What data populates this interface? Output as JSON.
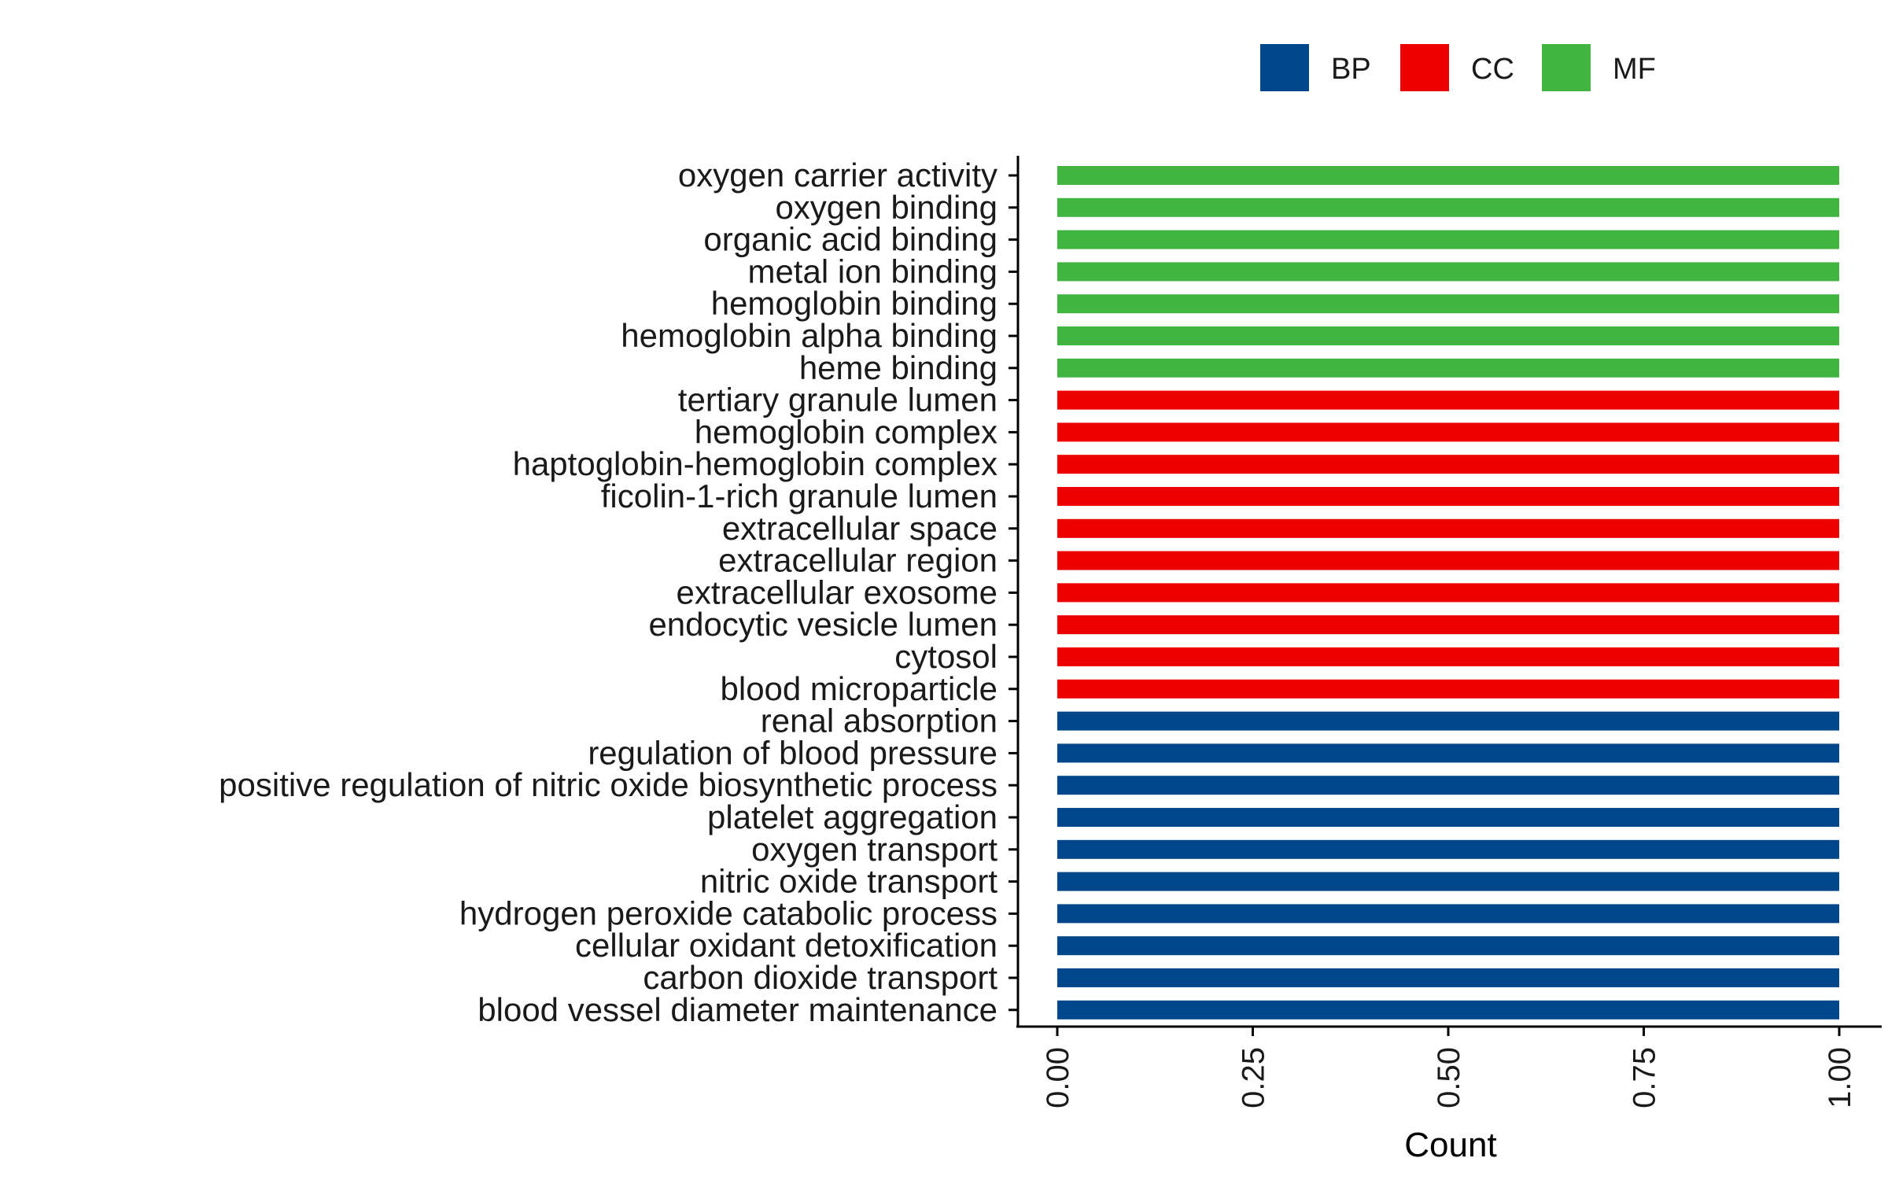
{
  "chart_data": {
    "type": "bar",
    "orientation": "horizontal",
    "title": "",
    "xlabel": "Count",
    "ylabel": "",
    "xlim": [
      0,
      1
    ],
    "x_ticks": [
      "0.00",
      "0.25",
      "0.50",
      "0.75",
      "1.00"
    ],
    "x_tick_values": [
      0,
      0.25,
      0.5,
      0.75,
      1.0
    ],
    "grid": false,
    "legend": {
      "placement": "top",
      "entries": [
        {
          "name": "BP",
          "color": "#00468B"
        },
        {
          "name": "CC",
          "color": "#ED0000"
        },
        {
          "name": "MF",
          "color": "#42B540"
        }
      ]
    },
    "bars": [
      {
        "category": "oxygen carrier activity",
        "group": "MF",
        "value": 1
      },
      {
        "category": "oxygen binding",
        "group": "MF",
        "value": 1
      },
      {
        "category": "organic acid binding",
        "group": "MF",
        "value": 1
      },
      {
        "category": "metal ion binding",
        "group": "MF",
        "value": 1
      },
      {
        "category": "hemoglobin binding",
        "group": "MF",
        "value": 1
      },
      {
        "category": "hemoglobin alpha binding",
        "group": "MF",
        "value": 1
      },
      {
        "category": "heme binding",
        "group": "MF",
        "value": 1
      },
      {
        "category": "tertiary granule lumen",
        "group": "CC",
        "value": 1
      },
      {
        "category": "hemoglobin complex",
        "group": "CC",
        "value": 1
      },
      {
        "category": "haptoglobin-hemoglobin complex",
        "group": "CC",
        "value": 1
      },
      {
        "category": "ficolin-1-rich granule lumen",
        "group": "CC",
        "value": 1
      },
      {
        "category": "extracellular space",
        "group": "CC",
        "value": 1
      },
      {
        "category": "extracellular region",
        "group": "CC",
        "value": 1
      },
      {
        "category": "extracellular exosome",
        "group": "CC",
        "value": 1
      },
      {
        "category": "endocytic vesicle lumen",
        "group": "CC",
        "value": 1
      },
      {
        "category": "cytosol",
        "group": "CC",
        "value": 1
      },
      {
        "category": "blood microparticle",
        "group": "CC",
        "value": 1
      },
      {
        "category": "renal absorption",
        "group": "BP",
        "value": 1
      },
      {
        "category": "regulation of blood pressure",
        "group": "BP",
        "value": 1
      },
      {
        "category": "positive regulation of nitric oxide biosynthetic process",
        "group": "BP",
        "value": 1
      },
      {
        "category": "platelet aggregation",
        "group": "BP",
        "value": 1
      },
      {
        "category": "oxygen transport",
        "group": "BP",
        "value": 1
      },
      {
        "category": "nitric oxide transport",
        "group": "BP",
        "value": 1
      },
      {
        "category": "hydrogen peroxide catabolic process",
        "group": "BP",
        "value": 1
      },
      {
        "category": "cellular oxidant detoxification",
        "group": "BP",
        "value": 1
      },
      {
        "category": "carbon dioxide transport",
        "group": "BP",
        "value": 1
      },
      {
        "category": "blood vessel diameter maintenance",
        "group": "BP",
        "value": 1
      }
    ]
  }
}
